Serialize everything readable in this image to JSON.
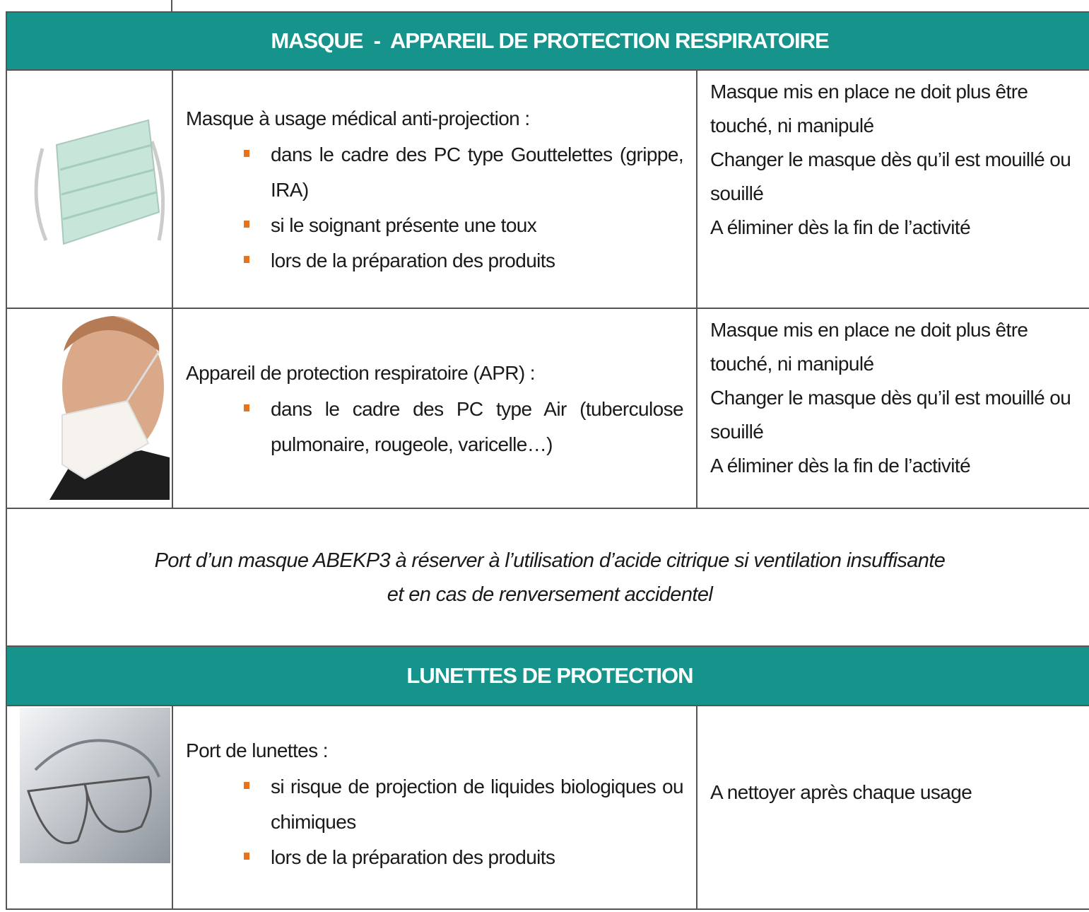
{
  "sections": [
    {
      "header": "MASQUE  -  APPAREIL DE PROTECTION RESPIRATOIRE",
      "rows": [
        {
          "intro": "Masque à usage médical anti-projection :",
          "bullets": [
            "dans le cadre des PC type Gouttelettes (grippe, IRA)",
            "si le soignant présente une toux",
            "lors de la préparation des produits"
          ],
          "notes": [
            "Masque mis en place ne doit plus être touché,  ni manipulé",
            "Changer le masque dès qu’il est mouillé ou souillé",
            "A éliminer dès la fin de l’activité"
          ]
        },
        {
          "intro": "Appareil de  protection respiratoire (APR) :",
          "bullets": [
            "dans le cadre des PC type Air (tuberculose pulmonaire, rougeole, varicelle…)"
          ],
          "notes": [
            "Masque mis en place ne doit plus être touché, ni manipulé",
            "Changer le masque dès qu’il est mouillé ou souillé",
            "A éliminer dès la fin de l’activité"
          ]
        }
      ],
      "note": [
        "Port d’un masque ABEKP3 à réserver à l’utilisation d’acide citrique si ventilation insuffisante",
        "et en cas de renversement accidentel"
      ]
    },
    {
      "header": "LUNETTES DE PROTECTION",
      "rows": [
        {
          "intro": "Port de lunettes :",
          "bullets": [
            "si risque de projection de liquides biologiques ou chimiques",
            "lors de la préparation des produits"
          ],
          "notes": [
            "A nettoyer après chaque usage"
          ]
        }
      ]
    }
  ]
}
